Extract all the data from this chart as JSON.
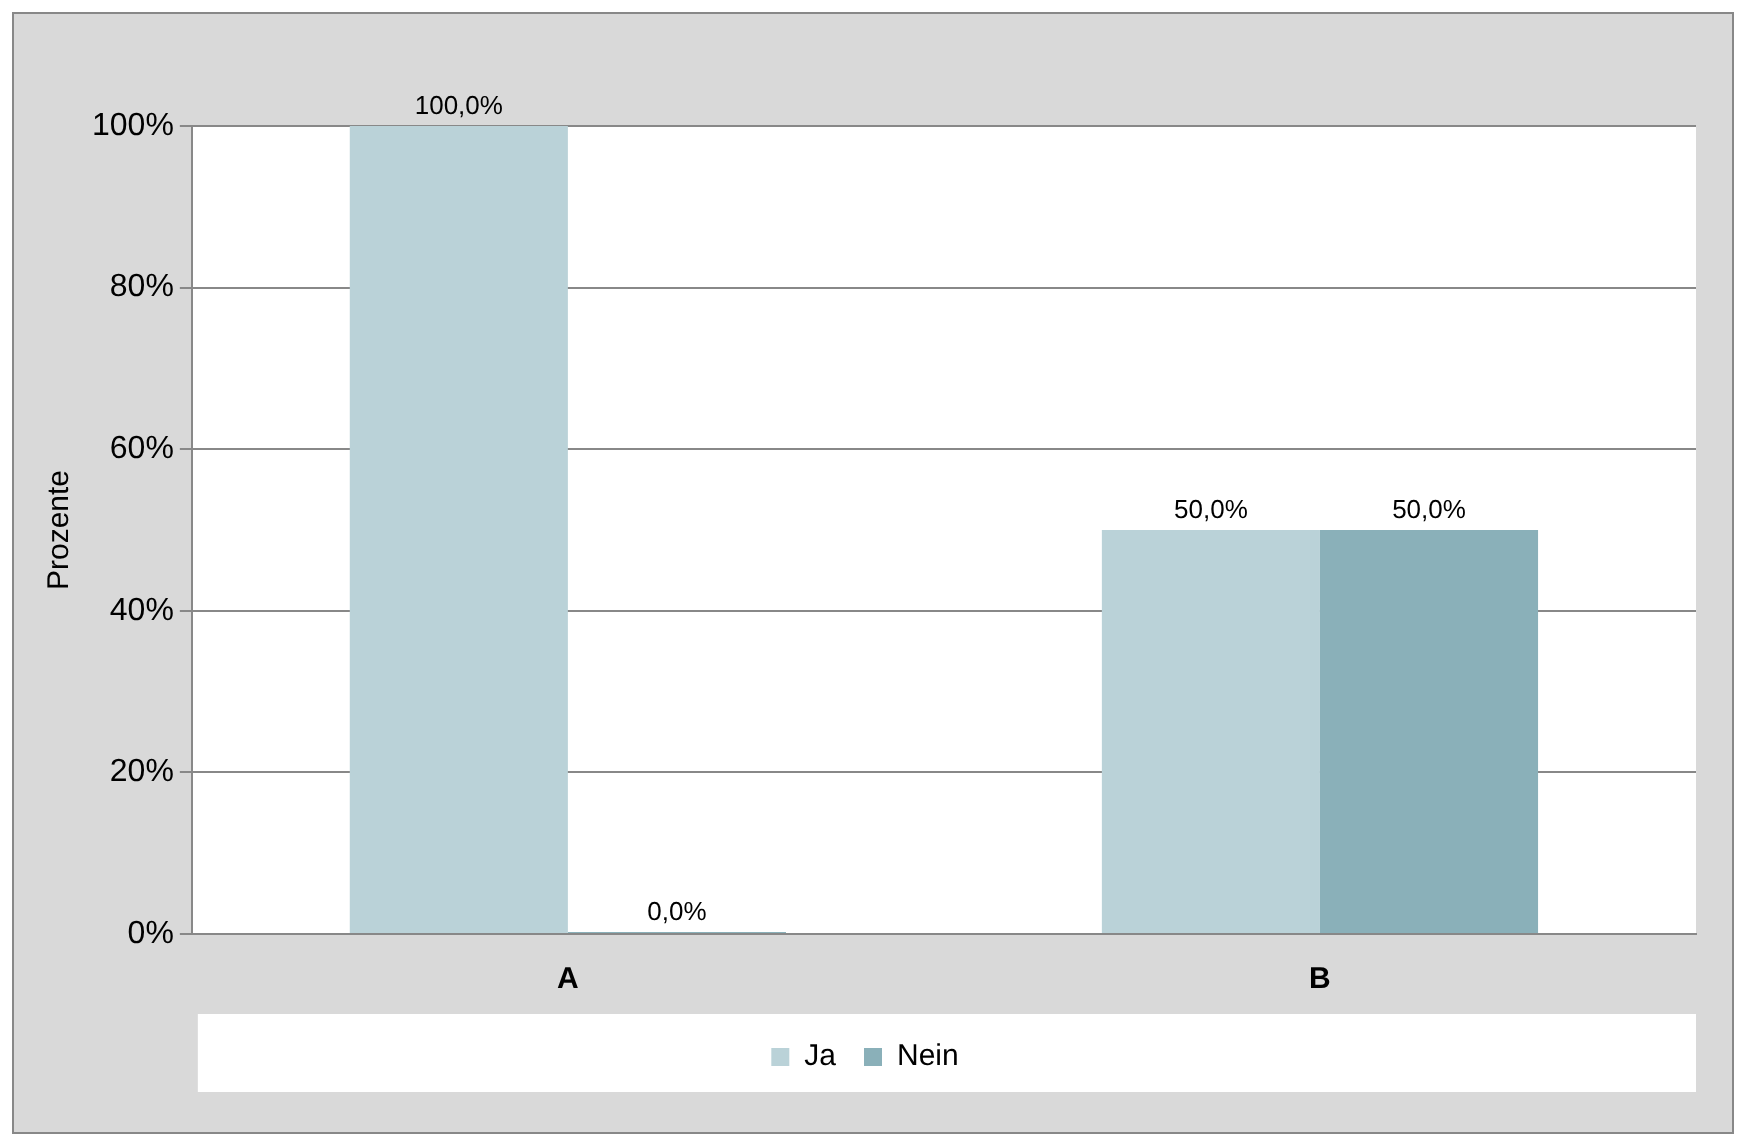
{
  "chart_data": {
    "type": "bar",
    "ylabel": "Prozente",
    "categories": [
      "A",
      "B"
    ],
    "series": [
      {
        "name": "Ja",
        "color": "#bad2d8",
        "values": [
          100,
          50
        ],
        "value_labels": [
          "100,0%",
          "50,0%"
        ]
      },
      {
        "name": "Nein",
        "color": "#8ab0b9",
        "values": [
          0,
          50
        ],
        "value_labels": [
          "0,0%",
          "50,0%"
        ]
      }
    ],
    "ylim": [
      0,
      100
    ],
    "yticks": [
      {
        "value": 0,
        "label": "0%"
      },
      {
        "value": 20,
        "label": "20%"
      },
      {
        "value": 40,
        "label": "40%"
      },
      {
        "value": 60,
        "label": "60%"
      },
      {
        "value": 80,
        "label": "80%"
      },
      {
        "value": 100,
        "label": "100%"
      }
    ],
    "grid": "y",
    "legend": "bottom"
  }
}
